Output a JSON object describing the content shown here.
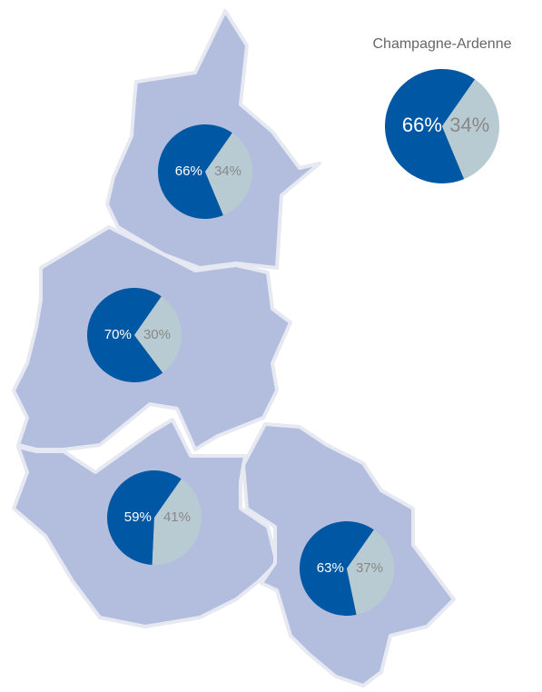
{
  "title": "Champagne-Ardenne",
  "colors": [
    "#0057a3",
    "#b9cbd2"
  ],
  "summary": {
    "values": [
      66,
      34
    ],
    "value_labels": [
      "66%",
      "34%"
    ]
  },
  "regions": [
    {
      "values": [
        66,
        34
      ],
      "value_labels": [
        "66%",
        "34%"
      ]
    },
    {
      "values": [
        70,
        30
      ],
      "value_labels": [
        "70%",
        "30%"
      ]
    },
    {
      "values": [
        59,
        41
      ],
      "value_labels": [
        "59%",
        "41%"
      ]
    },
    {
      "values": [
        63,
        37
      ],
      "value_labels": [
        "63%",
        "37%"
      ]
    }
  ]
}
